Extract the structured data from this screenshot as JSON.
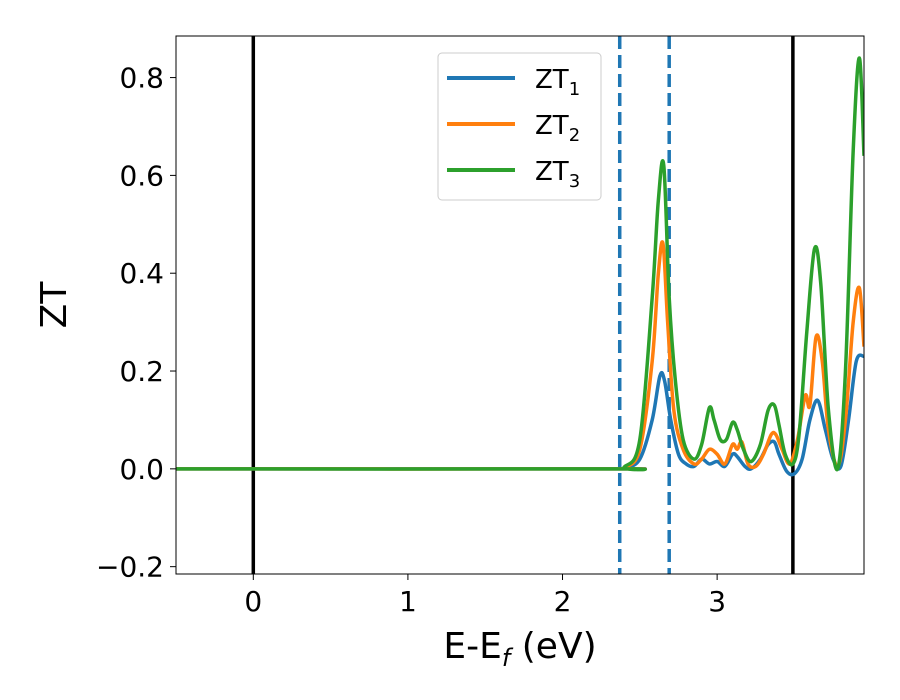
{
  "chart_data": {
    "type": "line",
    "xlabel": "E-E",
    "xlabel_sub": "f",
    "xlabel_unit": " (eV)",
    "ylabel": "ZT",
    "xlim": [
      -0.5,
      3.95
    ],
    "ylim": [
      -0.215,
      0.885
    ],
    "xticks": [
      0,
      1,
      2,
      3
    ],
    "xtick_labels": [
      "0",
      "1",
      "2",
      "3"
    ],
    "yticks": [
      -0.2,
      0.0,
      0.2,
      0.4,
      0.6,
      0.8
    ],
    "ytick_labels": [
      "−0.2",
      "0.0",
      "0.2",
      "0.4",
      "0.6",
      "0.8"
    ],
    "legend_position": "upper-center",
    "vlines": [
      {
        "x": 0.0,
        "style": "solid",
        "color": "#000000"
      },
      {
        "x": 2.37,
        "style": "dashed",
        "color": "#1f77b4"
      },
      {
        "x": 2.69,
        "style": "dashed",
        "color": "#1f77b4"
      },
      {
        "x": 3.49,
        "style": "solid",
        "color": "#000000"
      }
    ],
    "series": [
      {
        "name": "ZT",
        "name_sub": "1",
        "color": "#1f77b4",
        "x": [
          -0.5,
          2.3,
          2.4,
          2.5,
          2.58,
          2.63,
          2.66,
          2.7,
          2.75,
          2.8,
          2.85,
          2.9,
          2.95,
          3.0,
          3.05,
          3.1,
          3.13,
          3.18,
          3.22,
          3.28,
          3.33,
          3.37,
          3.4,
          3.45,
          3.5,
          3.55,
          3.6,
          3.65,
          3.7,
          3.75,
          3.8,
          3.85,
          3.9,
          3.95
        ],
        "y": [
          0.0,
          0.0,
          0.002,
          0.02,
          0.1,
          0.19,
          0.18,
          0.1,
          0.03,
          0.01,
          0.005,
          0.02,
          0.01,
          0.015,
          0.005,
          0.03,
          0.025,
          0.005,
          0.0,
          0.02,
          0.05,
          0.055,
          0.03,
          -0.005,
          -0.01,
          0.02,
          0.1,
          0.14,
          0.08,
          0.02,
          0.005,
          0.1,
          0.22,
          0.23
        ]
      },
      {
        "name": "ZT",
        "name_sub": "2",
        "color": "#ff7f0e",
        "x": [
          -0.5,
          2.3,
          2.4,
          2.5,
          2.58,
          2.62,
          2.65,
          2.68,
          2.72,
          2.78,
          2.85,
          2.9,
          2.95,
          3.0,
          3.05,
          3.1,
          3.13,
          3.16,
          3.2,
          3.25,
          3.3,
          3.35,
          3.38,
          3.42,
          3.47,
          3.52,
          3.57,
          3.6,
          3.64,
          3.68,
          3.72,
          3.78,
          3.83,
          3.88,
          3.92,
          3.95
        ],
        "y": [
          0.0,
          0.0,
          0.003,
          0.04,
          0.22,
          0.4,
          0.46,
          0.3,
          0.12,
          0.04,
          0.01,
          0.02,
          0.04,
          0.03,
          0.01,
          0.05,
          0.04,
          0.055,
          0.01,
          0.005,
          0.03,
          0.07,
          0.07,
          0.04,
          0.01,
          0.06,
          0.15,
          0.13,
          0.27,
          0.22,
          0.08,
          0.005,
          0.1,
          0.3,
          0.37,
          0.25
        ]
      },
      {
        "name": "ZT",
        "name_sub": "3",
        "color": "#2ca02c",
        "x": [
          -0.5,
          2.3,
          2.4,
          2.5,
          2.58,
          2.62,
          2.655,
          2.69,
          2.73,
          2.78,
          2.85,
          2.9,
          2.95,
          2.98,
          3.02,
          3.06,
          3.1,
          3.13,
          3.17,
          3.22,
          3.28,
          3.33,
          3.37,
          3.4,
          3.44,
          3.49,
          3.53,
          3.58,
          3.63,
          3.67,
          3.72,
          3.78,
          3.83,
          3.88,
          3.92,
          3.95
        ],
        "y": [
          0.0,
          0.0,
          0.004,
          0.06,
          0.35,
          0.55,
          0.62,
          0.35,
          0.18,
          0.06,
          0.02,
          0.05,
          0.125,
          0.1,
          0.06,
          0.06,
          0.095,
          0.08,
          0.04,
          0.015,
          0.05,
          0.12,
          0.13,
          0.09,
          0.03,
          0.01,
          0.07,
          0.28,
          0.45,
          0.38,
          0.12,
          0.0,
          0.2,
          0.65,
          0.84,
          0.64
        ]
      }
    ]
  }
}
